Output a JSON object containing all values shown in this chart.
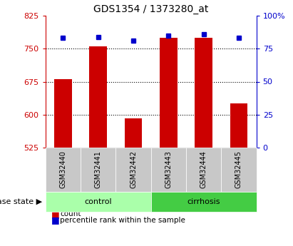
{
  "title": "GDS1354 / 1373280_at",
  "categories": [
    "GSM32440",
    "GSM32441",
    "GSM32442",
    "GSM32443",
    "GSM32444",
    "GSM32445"
  ],
  "bar_values": [
    680,
    755,
    592,
    775,
    775,
    625
  ],
  "bar_bottom": 525,
  "percentile_values": [
    83,
    84,
    81,
    85,
    86,
    83
  ],
  "ylim_left": [
    525,
    825
  ],
  "ylim_right": [
    0,
    100
  ],
  "yticks_left": [
    525,
    600,
    675,
    750,
    825
  ],
  "yticks_right": [
    0,
    25,
    50,
    75,
    100
  ],
  "groups": [
    {
      "label": "control",
      "indices": [
        0,
        1,
        2
      ],
      "color": "#aaffaa"
    },
    {
      "label": "cirrhosis",
      "indices": [
        3,
        4,
        5
      ],
      "color": "#44cc44"
    }
  ],
  "bar_color": "#cc0000",
  "marker_color": "#0000cc",
  "left_axis_color": "#cc0000",
  "right_axis_color": "#0000cc",
  "bg_color": "#ffffff",
  "sample_box_color": "#c8c8c8",
  "disease_state_label": "disease state",
  "legend_items": [
    {
      "color": "#cc0000",
      "label": "count"
    },
    {
      "color": "#0000cc",
      "label": "percentile rank within the sample"
    }
  ]
}
